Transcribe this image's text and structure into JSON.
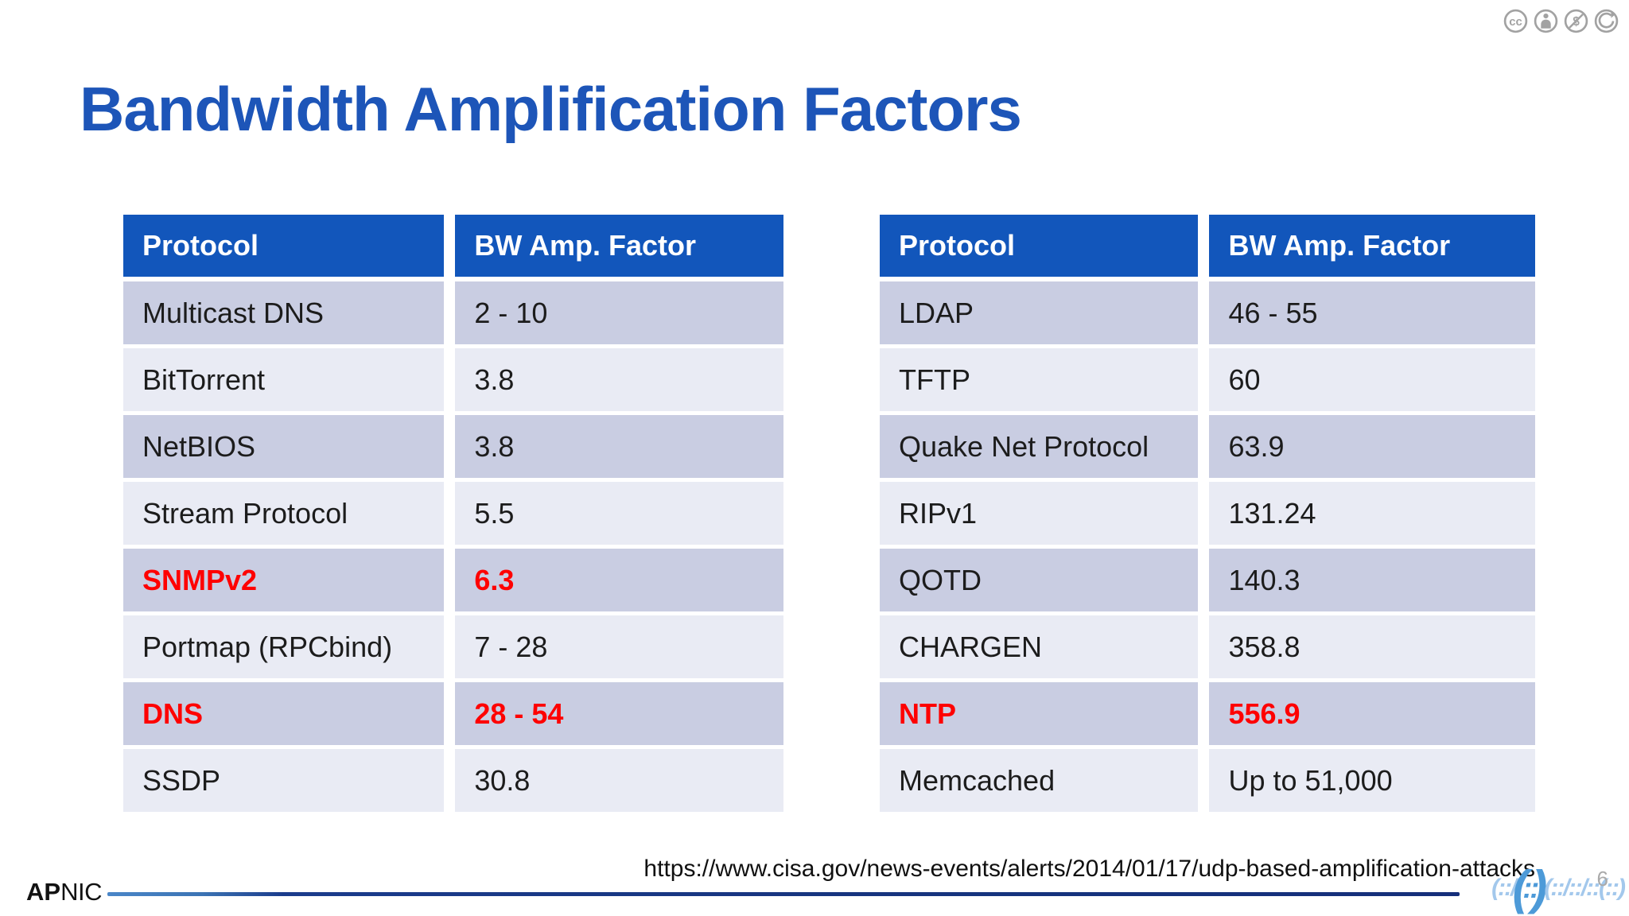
{
  "title": "Bandwidth Amplification Factors",
  "license_icons": [
    {
      "name": "cc-icon",
      "label": "cc"
    },
    {
      "name": "attribution-icon",
      "label": "by"
    },
    {
      "name": "noncommercial-icon",
      "label": "nc"
    },
    {
      "name": "sharealike-icon",
      "label": "sa"
    }
  ],
  "tables": [
    {
      "headers": [
        "Protocol",
        "BW Amp. Factor"
      ],
      "rows": [
        {
          "protocol": "Multicast DNS",
          "factor": "2 - 10",
          "emphasis": false
        },
        {
          "protocol": "BitTorrent",
          "factor": "3.8",
          "emphasis": false
        },
        {
          "protocol": "NetBIOS",
          "factor": "3.8",
          "emphasis": false
        },
        {
          "protocol": "Stream Protocol",
          "factor": "5.5",
          "emphasis": false
        },
        {
          "protocol": "SNMPv2",
          "factor": "6.3",
          "emphasis": true
        },
        {
          "protocol": "Portmap (RPCbind)",
          "factor": "7 - 28",
          "emphasis": false
        },
        {
          "protocol": "DNS",
          "factor": "28 - 54",
          "emphasis": true
        },
        {
          "protocol": "SSDP",
          "factor": "30.8",
          "emphasis": false
        }
      ]
    },
    {
      "headers": [
        "Protocol",
        "BW Amp. Factor"
      ],
      "rows": [
        {
          "protocol": "LDAP",
          "factor": "46 - 55",
          "emphasis": false
        },
        {
          "protocol": "TFTP",
          "factor": "60",
          "emphasis": false
        },
        {
          "protocol": "Quake Net Protocol",
          "factor": "63.9",
          "emphasis": false
        },
        {
          "protocol": "RIPv1",
          "factor": "131.24",
          "emphasis": false
        },
        {
          "protocol": "QOTD",
          "factor": "140.3",
          "emphasis": false
        },
        {
          "protocol": "CHARGEN",
          "factor": "358.8",
          "emphasis": false
        },
        {
          "protocol": "NTP",
          "factor": "556.9",
          "emphasis": true
        },
        {
          "protocol": "Memcached",
          "factor": "Up to 51,000",
          "emphasis": false
        }
      ]
    }
  ],
  "source_url": "https://www.cisa.gov/news-events/alerts/2014/01/17/udp-based-amplification-attacks",
  "footer": {
    "brand_bold": "AP",
    "brand_rest": "NIC",
    "page_number": "6",
    "logo_art": [
      {
        "t": "(::/",
        "s": "sm"
      },
      {
        "t": "(",
        "s": "lg"
      },
      {
        "t": "::",
        "s": "md"
      },
      {
        "t": ")",
        "s": "lg"
      },
      {
        "t": "(::",
        "s": "sm"
      },
      {
        "t": "/::",
        "s": "sm"
      },
      {
        "t": "/::(",
        "s": "sm"
      },
      {
        "t": "::)",
        "s": "sm"
      }
    ]
  },
  "colors": {
    "title": "#1d55b8",
    "header_bg": "#1256bb",
    "header_text": "#ffffff",
    "row_dark": "#c9cde2",
    "row_light": "#e9ebf4",
    "cell_text": "#1c1c1c",
    "emphasis": "#fe0000",
    "line_start": "#4a86c8",
    "line_end": "#152f7a",
    "logo_blue": "#4d9ad8",
    "logo_light": "#a3c8ec",
    "page_number": "#aaaaaa",
    "icon_gray": "#8c8c8c"
  }
}
